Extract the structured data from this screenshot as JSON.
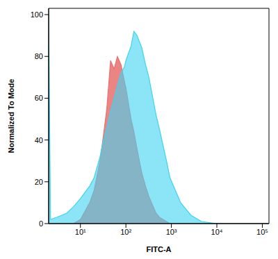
{
  "chart_data": {
    "type": "area",
    "x_label": "FITC-A",
    "y_label": "Normalized To Mode",
    "log": "x",
    "x": [
      2,
      2.2,
      3,
      5,
      7,
      10,
      16,
      20,
      27,
      32,
      38,
      46,
      55,
      65,
      78,
      93,
      100,
      130,
      150,
      175,
      225,
      270,
      320,
      460,
      550,
      780,
      930,
      1600,
      2700,
      4600,
      10000,
      140000
    ],
    "series": [
      {
        "color": "#e8706f",
        "values": [
          0,
          0,
          0,
          0,
          0,
          2,
          10,
          16,
          30,
          42,
          55,
          78,
          74,
          80,
          76,
          68,
          65,
          50,
          44,
          36,
          24,
          18,
          13,
          5,
          3,
          1,
          0,
          0,
          0,
          0,
          0,
          0
        ]
      },
      {
        "color": "#3fd3f0",
        "values": [
          100,
          2,
          3,
          5,
          8,
          12,
          18,
          22,
          32,
          40,
          46,
          54,
          60,
          66,
          72,
          75,
          78,
          85,
          92,
          90,
          84,
          76,
          70,
          52,
          45,
          30,
          22,
          10,
          4,
          1,
          0,
          0
        ]
      }
    ],
    "xlim": [
      2,
      140000
    ],
    "xticks": [
      {
        "value": 10,
        "label": "10¹"
      },
      {
        "value": 100,
        "label": "10²"
      },
      {
        "value": 1000,
        "label": "10³"
      },
      {
        "value": 10000,
        "label": "10⁴"
      },
      {
        "value": 100000,
        "label": "10⁵"
      }
    ],
    "ylim": [
      0,
      103
    ],
    "yticks": [
      0,
      20,
      40,
      60,
      80,
      100
    ]
  }
}
